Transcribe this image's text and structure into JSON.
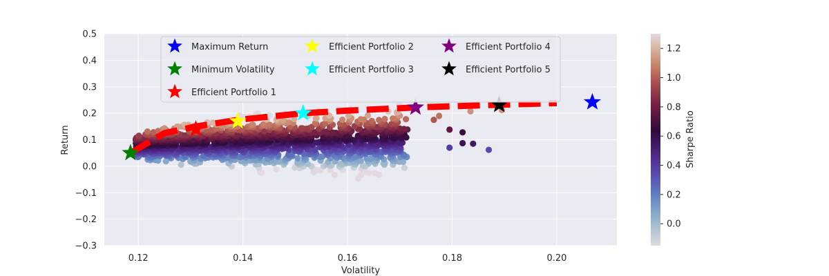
{
  "chart_data": {
    "type": "scatter",
    "xlabel": "Volatility",
    "ylabel": "Return",
    "xlim": [
      0.1135,
      0.2115
    ],
    "ylim": [
      -0.3,
      0.5
    ],
    "xticks": [
      "0.12",
      "0.14",
      "0.16",
      "0.18",
      "0.20"
    ],
    "xtick_values": [
      0.12,
      0.14,
      0.16,
      0.18,
      0.2
    ],
    "yticks": [
      "−0.3",
      "−0.2",
      "−0.1",
      "0.0",
      "0.1",
      "0.2",
      "0.3",
      "0.4",
      "0.5"
    ],
    "ytick_values": [
      -0.3,
      -0.2,
      -0.1,
      0.0,
      0.1,
      0.2,
      0.3,
      0.4,
      0.5
    ],
    "grid": true,
    "background": "#eaeaf2",
    "legend_placement": "upper-center",
    "colorbar": {
      "label": "Sharpe Ratio",
      "range": [
        -0.15,
        1.3
      ],
      "ticks": [
        "0.0",
        "0.2",
        "0.4",
        "0.6",
        "0.8",
        "1.0",
        "1.2"
      ],
      "tick_values": [
        0.0,
        0.2,
        0.4,
        0.6,
        0.8,
        1.0,
        1.2
      ],
      "colormap": "twilight"
    },
    "frontier": {
      "style": "dashed",
      "color": "#ff0000",
      "x": [
        0.1185,
        0.125,
        0.131,
        0.139,
        0.1515,
        0.16,
        0.173,
        0.189,
        0.2
      ],
      "y": [
        0.05,
        0.125,
        0.15,
        0.175,
        0.2,
        0.21,
        0.222,
        0.232,
        0.238
      ]
    },
    "markers": [
      {
        "name": "Maximum Return",
        "x": 0.2068,
        "y": 0.242,
        "color": "#0000ff"
      },
      {
        "name": "Minimum Volatility",
        "x": 0.1185,
        "y": 0.05,
        "color": "#008000"
      },
      {
        "name": "Efficient Portfolio 1",
        "x": 0.131,
        "y": 0.14,
        "color": "#ff0000"
      },
      {
        "name": "Efficient Portfolio 2",
        "x": 0.139,
        "y": 0.17,
        "color": "#ffff00"
      },
      {
        "name": "Efficient Portfolio 3",
        "x": 0.1515,
        "y": 0.2,
        "color": "#00ffff"
      },
      {
        "name": "Efficient Portfolio 4",
        "x": 0.173,
        "y": 0.222,
        "color": "#800080"
      },
      {
        "name": "Efficient Portfolio 5",
        "x": 0.189,
        "y": 0.232,
        "color": "#000000"
      }
    ],
    "scatter_outliers": [
      {
        "x": 0.187,
        "y": 0.062,
        "sharpe": 0.35
      },
      {
        "x": 0.184,
        "y": 0.085,
        "sharpe": 0.55
      },
      {
        "x": 0.182,
        "y": 0.087,
        "sharpe": 0.58
      },
      {
        "x": 0.182,
        "y": 0.128,
        "sharpe": 0.66
      },
      {
        "x": 0.1795,
        "y": 0.07,
        "sharpe": 0.4
      },
      {
        "x": 0.1795,
        "y": 0.138,
        "sharpe": 0.75
      },
      {
        "x": 0.1835,
        "y": 0.207,
        "sharpe": 1.12
      },
      {
        "x": 0.1895,
        "y": 0.212,
        "sharpe": 1.12
      },
      {
        "x": 0.1775,
        "y": 0.19,
        "sharpe": 1.05
      },
      {
        "x": 0.1765,
        "y": 0.175,
        "sharpe": 0.98
      }
    ]
  }
}
